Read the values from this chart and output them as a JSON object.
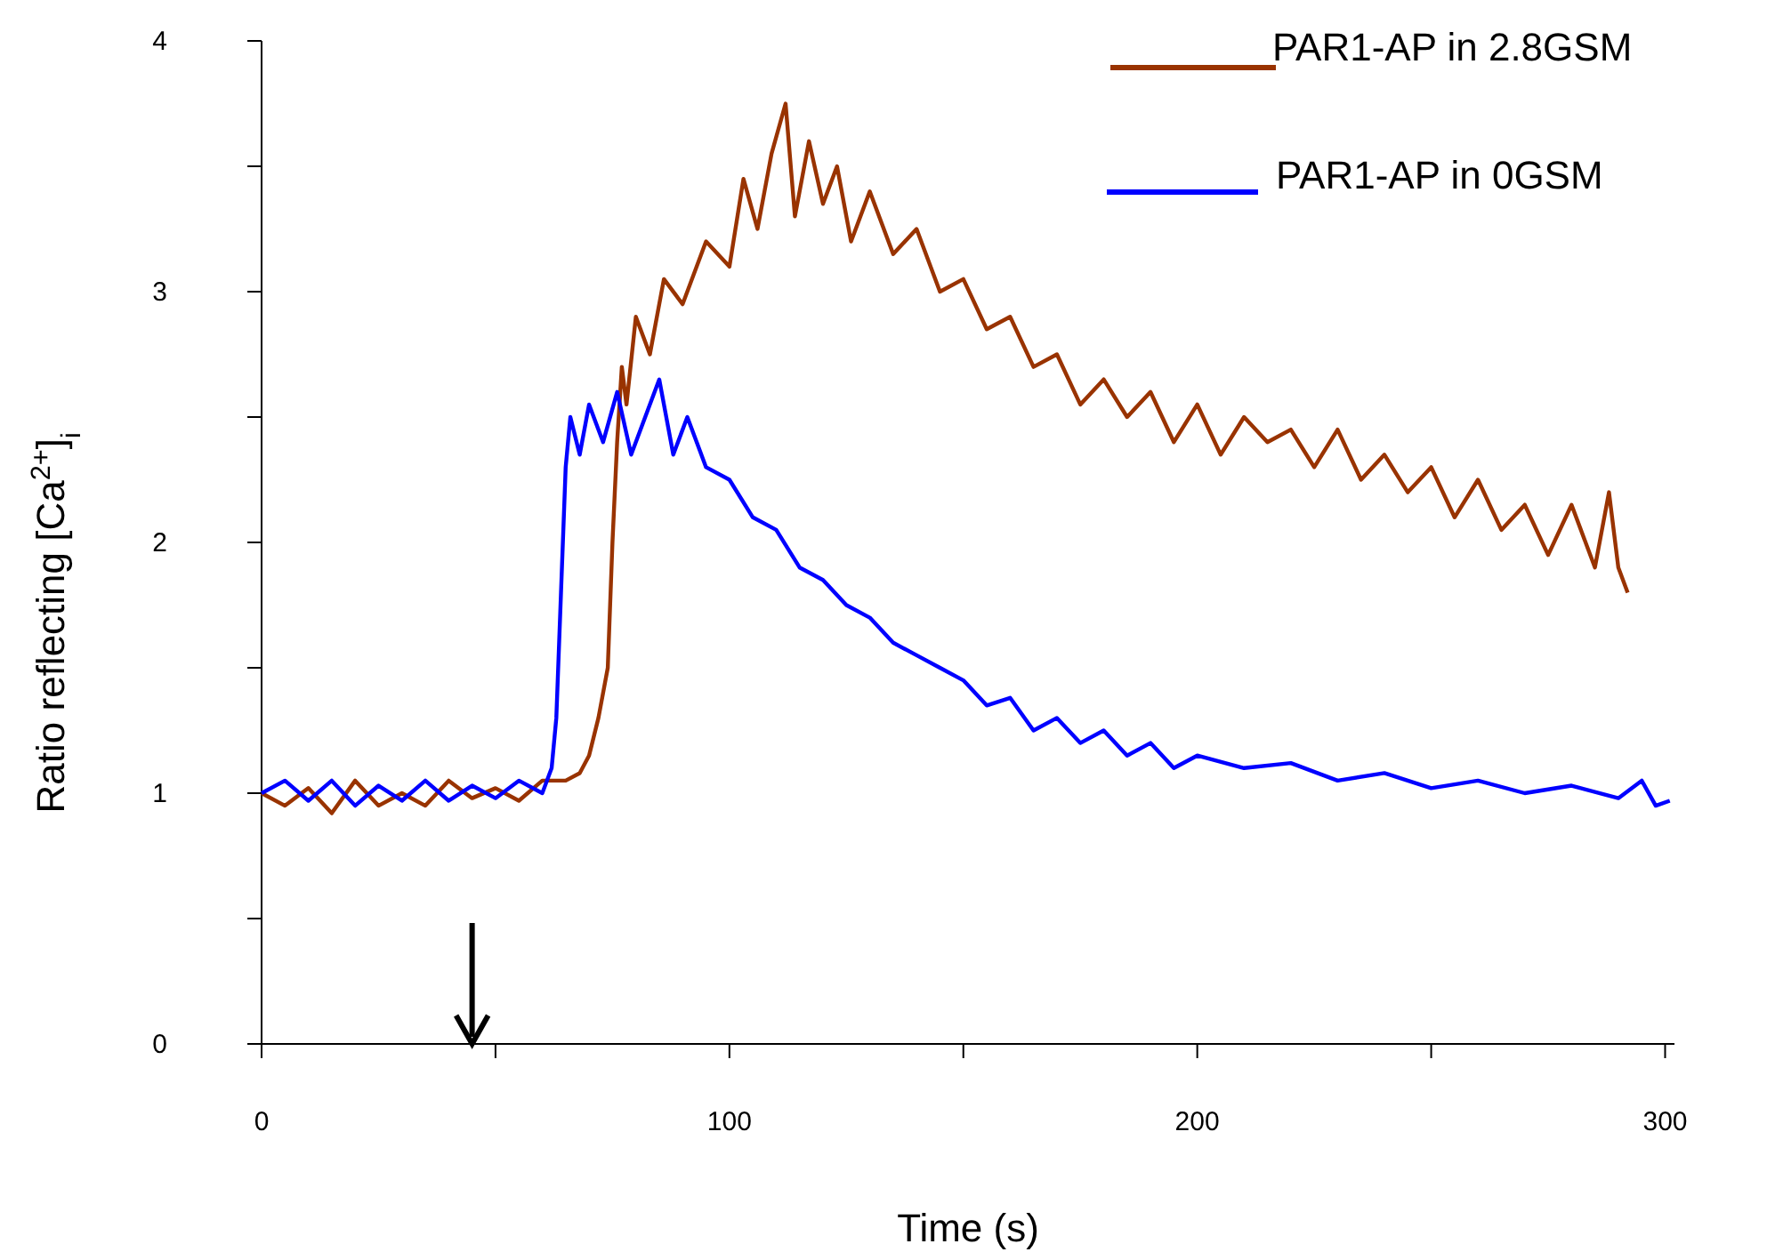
{
  "chart_data": {
    "type": "line",
    "xlabel": "Time (s)",
    "ylabel": "Ratio reflecting [Ca$^{2+}$]$_{i}$",
    "xlim": [
      0,
      302
    ],
    "ylim": [
      0,
      4
    ],
    "xticks": [
      0,
      {
        "value": 50,
        "label": null
      },
      100,
      {
        "value": 150,
        "label": null
      },
      200,
      {
        "value": 250,
        "label": null
      },
      300
    ],
    "yticks": [
      0,
      {
        "value": 0.5,
        "label": null
      },
      1,
      {
        "value": 1.5,
        "label": null
      },
      2,
      {
        "value": 2.5,
        "label": null
      },
      3,
      {
        "value": 3.5,
        "label": null
      },
      4
    ],
    "grid": false,
    "legend": "top right",
    "marker": "none",
    "line_style": "solid",
    "series": [
      {
        "name": "PAR1-AP in 2.8GSM",
        "color": "#993300",
        "x": [
          0,
          5,
          10,
          15,
          20,
          25,
          30,
          35,
          40,
          45,
          50,
          55,
          60,
          65,
          68,
          70,
          72,
          74,
          75,
          76,
          77,
          78,
          80,
          83,
          86,
          90,
          95,
          100,
          103,
          106,
          109,
          112,
          114,
          117,
          120,
          123,
          126,
          130,
          135,
          140,
          145,
          150,
          155,
          160,
          165,
          170,
          175,
          180,
          185,
          190,
          195,
          200,
          205,
          210,
          215,
          220,
          225,
          230,
          235,
          240,
          245,
          250,
          255,
          260,
          265,
          270,
          275,
          280,
          285,
          288,
          290,
          292
        ],
        "values": [
          1.0,
          0.95,
          1.02,
          0.92,
          1.05,
          0.95,
          1.0,
          0.95,
          1.05,
          0.98,
          1.02,
          0.97,
          1.05,
          1.05,
          1.08,
          1.15,
          1.3,
          1.5,
          2.0,
          2.4,
          2.7,
          2.55,
          2.9,
          2.75,
          3.05,
          2.95,
          3.2,
          3.1,
          3.45,
          3.25,
          3.55,
          3.75,
          3.3,
          3.6,
          3.35,
          3.5,
          3.2,
          3.4,
          3.15,
          3.25,
          3.0,
          3.05,
          2.85,
          2.9,
          2.7,
          2.75,
          2.55,
          2.65,
          2.5,
          2.6,
          2.4,
          2.55,
          2.35,
          2.5,
          2.4,
          2.45,
          2.3,
          2.45,
          2.25,
          2.35,
          2.2,
          2.3,
          2.1,
          2.25,
          2.05,
          2.15,
          1.95,
          2.15,
          1.9,
          2.2,
          1.9,
          1.8
        ]
      },
      {
        "name": "PAR1-AP in 0GSM",
        "color": "#0000ff",
        "x": [
          0,
          5,
          10,
          15,
          20,
          25,
          30,
          35,
          40,
          45,
          50,
          55,
          60,
          62,
          63,
          64,
          65,
          66,
          68,
          70,
          73,
          76,
          79,
          82,
          85,
          88,
          91,
          95,
          100,
          105,
          110,
          115,
          120,
          125,
          130,
          135,
          140,
          145,
          150,
          155,
          160,
          165,
          170,
          175,
          180,
          185,
          190,
          195,
          200,
          210,
          220,
          230,
          240,
          250,
          260,
          270,
          280,
          290,
          295,
          298,
          301
        ],
        "values": [
          1.0,
          1.05,
          0.97,
          1.05,
          0.95,
          1.03,
          0.97,
          1.05,
          0.97,
          1.03,
          0.98,
          1.05,
          1.0,
          1.1,
          1.3,
          1.8,
          2.3,
          2.5,
          2.35,
          2.55,
          2.4,
          2.6,
          2.35,
          2.5,
          2.65,
          2.35,
          2.5,
          2.3,
          2.25,
          2.1,
          2.05,
          1.9,
          1.85,
          1.75,
          1.7,
          1.6,
          1.55,
          1.5,
          1.45,
          1.35,
          1.38,
          1.25,
          1.3,
          1.2,
          1.25,
          1.15,
          1.2,
          1.1,
          1.15,
          1.1,
          1.12,
          1.05,
          1.08,
          1.02,
          1.05,
          1.0,
          1.03,
          0.98,
          1.05,
          0.95,
          0.97
        ]
      }
    ]
  }
}
